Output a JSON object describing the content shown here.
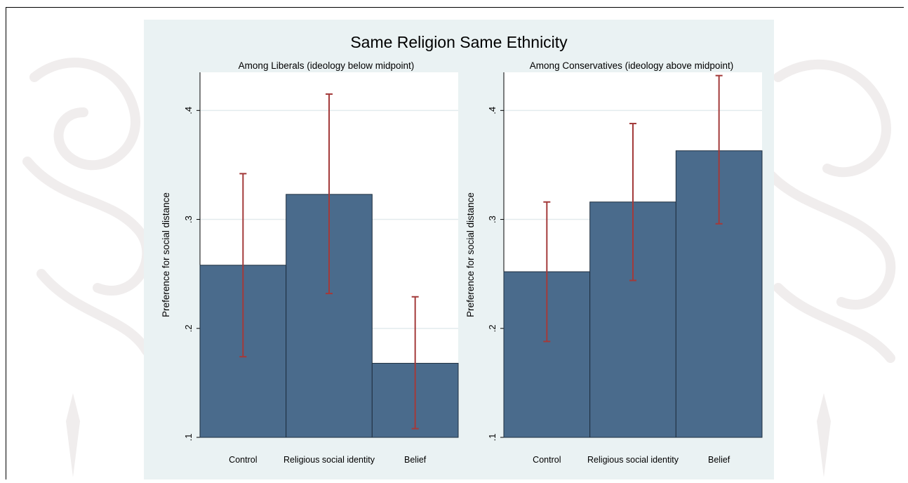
{
  "colors": {
    "bar_fill": "#4a6b8c",
    "bar_edge": "#1f2f3f",
    "errorbar": "#a33a3a",
    "panel_bg": "#eaf2f3",
    "plot_bg": "#ffffff",
    "grid": "#e3ebee"
  },
  "watermark": {
    "icon": "ornamental-floral-watermark"
  },
  "chart_data": {
    "type": "bar",
    "title": "Same Religion Same Ethnicity",
    "panels": [
      {
        "subtitle": "Among Liberals (ideology below midpoint)",
        "ylabel": "Preference for social distance",
        "ylim": [
          0.1,
          0.435
        ],
        "yticks": [
          0.1,
          0.2,
          0.3,
          0.4
        ],
        "ytick_labels": [
          ".1",
          ".2",
          ".3",
          ".4"
        ],
        "grid": true,
        "categories": [
          "Control",
          "Religious social identity",
          "Belief"
        ],
        "values": [
          0.258,
          0.323,
          0.168
        ],
        "ci_low": [
          0.174,
          0.232,
          0.108
        ],
        "ci_high": [
          0.342,
          0.415,
          0.229
        ]
      },
      {
        "subtitle": "Among Conservatives (ideology above midpoint)",
        "ylabel": "Preference for social distance",
        "ylim": [
          0.1,
          0.435
        ],
        "yticks": [
          0.1,
          0.2,
          0.3,
          0.4
        ],
        "ytick_labels": [
          ".1",
          ".2",
          ".3",
          ".4"
        ],
        "grid": true,
        "categories": [
          "Control",
          "Religious social identity",
          "Belief"
        ],
        "values": [
          0.252,
          0.316,
          0.363
        ],
        "ci_low": [
          0.188,
          0.244,
          0.296
        ],
        "ci_high": [
          0.316,
          0.388,
          0.432
        ]
      }
    ]
  }
}
